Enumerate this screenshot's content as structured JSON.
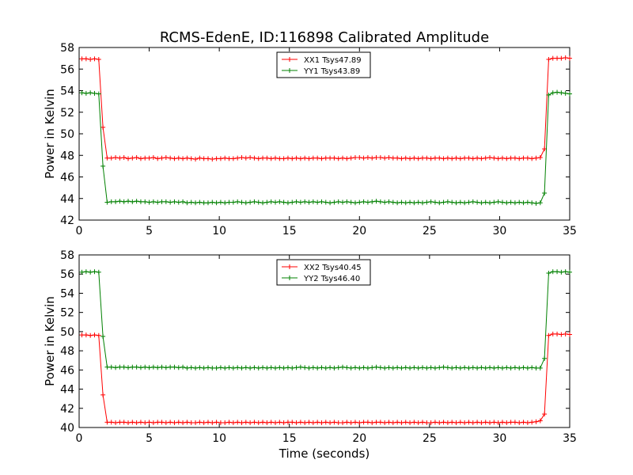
{
  "page": {
    "title": "RCMS-EdenE, ID:116898 Calibrated Amplitude"
  },
  "chart_data": [
    {
      "type": "line",
      "title": "RCMS-EdenE, ID:116898 Calibrated Amplitude",
      "xlabel": "",
      "ylabel": "Power in Kelvin",
      "xlim": [
        0,
        35
      ],
      "ylim": [
        42,
        58
      ],
      "xticks": [
        "0",
        "5",
        "10",
        "15",
        "20",
        "25",
        "30",
        "35"
      ],
      "yticks": [
        "42",
        "44",
        "46",
        "48",
        "50",
        "52",
        "54",
        "56",
        "58"
      ],
      "grid": false,
      "legend_position": "top-center",
      "x": [
        0.2,
        0.5,
        0.8,
        1.1,
        1.4,
        1.7,
        2.0,
        2.3,
        2.6,
        2.9,
        3.2,
        3.5,
        3.8,
        4.1,
        4.4,
        4.7,
        5.0,
        5.3,
        5.6,
        5.9,
        6.2,
        6.5,
        6.8,
        7.1,
        7.4,
        7.7,
        8.0,
        8.3,
        8.6,
        8.9,
        9.2,
        9.5,
        9.8,
        10.1,
        10.4,
        10.7,
        11.0,
        11.3,
        11.6,
        11.9,
        12.2,
        12.5,
        12.8,
        13.1,
        13.4,
        13.7,
        14.0,
        14.3,
        14.6,
        14.9,
        15.2,
        15.5,
        15.8,
        16.1,
        16.4,
        16.7,
        17.0,
        17.3,
        17.6,
        17.9,
        18.2,
        18.5,
        18.8,
        19.1,
        19.4,
        19.7,
        20.0,
        20.3,
        20.6,
        20.9,
        21.2,
        21.5,
        21.8,
        22.1,
        22.4,
        22.7,
        23.0,
        23.3,
        23.6,
        23.9,
        24.2,
        24.5,
        24.8,
        25.1,
        25.4,
        25.7,
        26.0,
        26.3,
        26.6,
        26.9,
        27.2,
        27.5,
        27.8,
        28.1,
        28.4,
        28.7,
        29.0,
        29.3,
        29.6,
        29.9,
        30.2,
        30.5,
        30.8,
        31.1,
        31.4,
        31.7,
        32.0,
        32.3,
        32.6,
        32.9,
        33.2,
        33.5,
        33.8,
        34.1,
        34.4,
        34.7,
        35.0
      ],
      "series": [
        {
          "name": "XX1 Tsys47.89",
          "color": "#ff0000",
          "values": [
            56.95,
            56.95,
            56.9,
            56.95,
            56.9,
            50.6,
            47.75,
            47.75,
            47.8,
            47.75,
            47.8,
            47.7,
            47.75,
            47.8,
            47.7,
            47.75,
            47.75,
            47.8,
            47.7,
            47.75,
            47.8,
            47.75,
            47.7,
            47.75,
            47.7,
            47.75,
            47.7,
            47.65,
            47.75,
            47.7,
            47.7,
            47.65,
            47.7,
            47.7,
            47.75,
            47.7,
            47.7,
            47.75,
            47.8,
            47.75,
            47.8,
            47.75,
            47.7,
            47.75,
            47.75,
            47.7,
            47.75,
            47.7,
            47.7,
            47.75,
            47.7,
            47.75,
            47.7,
            47.75,
            47.7,
            47.75,
            47.75,
            47.7,
            47.75,
            47.75,
            47.75,
            47.7,
            47.75,
            47.7,
            47.75,
            47.8,
            47.8,
            47.75,
            47.8,
            47.75,
            47.8,
            47.8,
            47.75,
            47.8,
            47.75,
            47.75,
            47.7,
            47.75,
            47.7,
            47.75,
            47.7,
            47.75,
            47.75,
            47.7,
            47.75,
            47.75,
            47.7,
            47.75,
            47.7,
            47.75,
            47.7,
            47.75,
            47.75,
            47.7,
            47.75,
            47.7,
            47.75,
            47.8,
            47.75,
            47.7,
            47.75,
            47.7,
            47.75,
            47.75,
            47.7,
            47.75,
            47.75,
            47.7,
            47.75,
            47.8,
            48.6,
            56.9,
            57.0,
            57.0,
            57.0,
            57.05,
            57.0
          ]
        },
        {
          "name": "YY1 Tsys43.89",
          "color": "#008000",
          "values": [
            53.8,
            53.75,
            53.8,
            53.75,
            53.7,
            47.0,
            43.65,
            43.7,
            43.7,
            43.75,
            43.7,
            43.75,
            43.7,
            43.75,
            43.7,
            43.7,
            43.65,
            43.7,
            43.65,
            43.7,
            43.7,
            43.65,
            43.7,
            43.65,
            43.7,
            43.6,
            43.65,
            43.6,
            43.65,
            43.6,
            43.6,
            43.65,
            43.6,
            43.65,
            43.6,
            43.65,
            43.65,
            43.7,
            43.65,
            43.6,
            43.65,
            43.7,
            43.65,
            43.6,
            43.65,
            43.7,
            43.65,
            43.7,
            43.65,
            43.6,
            43.65,
            43.7,
            43.65,
            43.7,
            43.65,
            43.7,
            43.65,
            43.7,
            43.65,
            43.6,
            43.65,
            43.7,
            43.65,
            43.7,
            43.65,
            43.6,
            43.65,
            43.7,
            43.65,
            43.7,
            43.75,
            43.7,
            43.65,
            43.7,
            43.65,
            43.6,
            43.65,
            43.6,
            43.65,
            43.6,
            43.65,
            43.6,
            43.65,
            43.7,
            43.65,
            43.6,
            43.65,
            43.7,
            43.65,
            43.6,
            43.65,
            43.6,
            43.65,
            43.7,
            43.65,
            43.6,
            43.65,
            43.6,
            43.65,
            43.7,
            43.65,
            43.6,
            43.65,
            43.6,
            43.65,
            43.6,
            43.65,
            43.6,
            43.55,
            43.6,
            44.5,
            53.6,
            53.8,
            53.85,
            53.8,
            53.75,
            53.7
          ]
        }
      ]
    },
    {
      "type": "line",
      "title": "",
      "xlabel": "Time (seconds)",
      "ylabel": "Power in Kelvin",
      "xlim": [
        0,
        35
      ],
      "ylim": [
        40,
        58
      ],
      "xticks": [
        "0",
        "5",
        "10",
        "15",
        "20",
        "25",
        "30",
        "35"
      ],
      "yticks": [
        "40",
        "42",
        "44",
        "46",
        "48",
        "50",
        "52",
        "54",
        "56",
        "58"
      ],
      "grid": false,
      "legend_position": "top-center",
      "x": [
        0.2,
        0.5,
        0.8,
        1.1,
        1.4,
        1.7,
        2.0,
        2.3,
        2.6,
        2.9,
        3.2,
        3.5,
        3.8,
        4.1,
        4.4,
        4.7,
        5.0,
        5.3,
        5.6,
        5.9,
        6.2,
        6.5,
        6.8,
        7.1,
        7.4,
        7.7,
        8.0,
        8.3,
        8.6,
        8.9,
        9.2,
        9.5,
        9.8,
        10.1,
        10.4,
        10.7,
        11.0,
        11.3,
        11.6,
        11.9,
        12.2,
        12.5,
        12.8,
        13.1,
        13.4,
        13.7,
        14.0,
        14.3,
        14.6,
        14.9,
        15.2,
        15.5,
        15.8,
        16.1,
        16.4,
        16.7,
        17.0,
        17.3,
        17.6,
        17.9,
        18.2,
        18.5,
        18.8,
        19.1,
        19.4,
        19.7,
        20.0,
        20.3,
        20.6,
        20.9,
        21.2,
        21.5,
        21.8,
        22.1,
        22.4,
        22.7,
        23.0,
        23.3,
        23.6,
        23.9,
        24.2,
        24.5,
        24.8,
        25.1,
        25.4,
        25.7,
        26.0,
        26.3,
        26.6,
        26.9,
        27.2,
        27.5,
        27.8,
        28.1,
        28.4,
        28.7,
        29.0,
        29.3,
        29.6,
        29.9,
        30.2,
        30.5,
        30.8,
        31.1,
        31.4,
        31.7,
        32.0,
        32.3,
        32.6,
        32.9,
        33.2,
        33.5,
        33.8,
        34.1,
        34.4,
        34.7,
        35.0
      ],
      "series": [
        {
          "name": "XX2 Tsys40.45",
          "color": "#ff0000",
          "values": [
            49.65,
            49.65,
            49.6,
            49.65,
            49.6,
            43.4,
            40.55,
            40.55,
            40.5,
            40.55,
            40.55,
            40.5,
            40.55,
            40.5,
            40.55,
            40.5,
            40.55,
            40.5,
            40.55,
            40.55,
            40.5,
            40.55,
            40.5,
            40.55,
            40.5,
            40.55,
            40.5,
            40.5,
            40.55,
            40.5,
            40.55,
            40.5,
            40.55,
            40.5,
            40.5,
            40.55,
            40.5,
            40.55,
            40.5,
            40.55,
            40.5,
            40.55,
            40.5,
            40.55,
            40.5,
            40.55,
            40.5,
            40.55,
            40.5,
            40.55,
            40.55,
            40.5,
            40.55,
            40.5,
            40.55,
            40.5,
            40.55,
            40.5,
            40.55,
            40.5,
            40.55,
            40.5,
            40.5,
            40.55,
            40.5,
            40.55,
            40.5,
            40.55,
            40.55,
            40.5,
            40.55,
            40.55,
            40.5,
            40.55,
            40.5,
            40.55,
            40.5,
            40.55,
            40.5,
            40.55,
            40.5,
            40.55,
            40.5,
            40.5,
            40.55,
            40.5,
            40.55,
            40.5,
            40.55,
            40.5,
            40.55,
            40.5,
            40.55,
            40.5,
            40.55,
            40.5,
            40.55,
            40.5,
            40.55,
            40.5,
            40.55,
            40.5,
            40.55,
            40.55,
            40.5,
            40.55,
            40.5,
            40.55,
            40.6,
            40.7,
            41.4,
            49.6,
            49.75,
            49.75,
            49.7,
            49.75,
            49.7
          ]
        },
        {
          "name": "YY2 Tsys46.40",
          "color": "#008000",
          "values": [
            56.2,
            56.25,
            56.2,
            56.25,
            56.2,
            49.5,
            46.3,
            46.3,
            46.25,
            46.3,
            46.3,
            46.25,
            46.3,
            46.3,
            46.25,
            46.3,
            46.25,
            46.3,
            46.25,
            46.3,
            46.25,
            46.3,
            46.3,
            46.25,
            46.3,
            46.2,
            46.25,
            46.2,
            46.25,
            46.2,
            46.25,
            46.2,
            46.2,
            46.25,
            46.2,
            46.25,
            46.2,
            46.25,
            46.2,
            46.25,
            46.2,
            46.25,
            46.2,
            46.25,
            46.2,
            46.25,
            46.2,
            46.25,
            46.2,
            46.25,
            46.2,
            46.25,
            46.3,
            46.25,
            46.2,
            46.25,
            46.2,
            46.25,
            46.2,
            46.25,
            46.2,
            46.25,
            46.3,
            46.25,
            46.2,
            46.25,
            46.2,
            46.25,
            46.2,
            46.25,
            46.3,
            46.25,
            46.2,
            46.25,
            46.2,
            46.25,
            46.2,
            46.25,
            46.2,
            46.25,
            46.2,
            46.25,
            46.2,
            46.25,
            46.2,
            46.25,
            46.3,
            46.25,
            46.2,
            46.25,
            46.2,
            46.25,
            46.2,
            46.25,
            46.2,
            46.25,
            46.2,
            46.25,
            46.2,
            46.25,
            46.2,
            46.25,
            46.2,
            46.25,
            46.2,
            46.25,
            46.2,
            46.25,
            46.2,
            46.2,
            47.2,
            56.1,
            56.25,
            56.25,
            56.2,
            56.25,
            56.2
          ]
        }
      ]
    }
  ]
}
